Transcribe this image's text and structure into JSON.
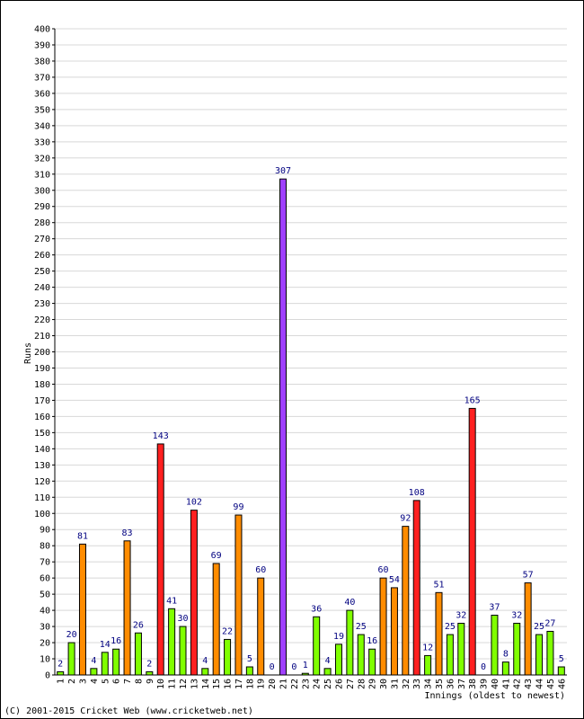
{
  "chart_data": {
    "type": "bar",
    "categories": [
      "1",
      "2",
      "3",
      "4",
      "5",
      "6",
      "7",
      "8",
      "9",
      "10",
      "11",
      "12",
      "13",
      "14",
      "15",
      "16",
      "17",
      "18",
      "19",
      "20",
      "21",
      "22",
      "23",
      "24",
      "25",
      "26",
      "27",
      "28",
      "29",
      "30",
      "31",
      "32",
      "33",
      "34",
      "35",
      "36",
      "37",
      "38",
      "39",
      "40",
      "41",
      "42",
      "43",
      "44",
      "45",
      "46"
    ],
    "values": [
      2,
      20,
      81,
      4,
      14,
      16,
      83,
      26,
      2,
      143,
      41,
      30,
      102,
      4,
      69,
      22,
      99,
      5,
      60,
      0,
      307,
      0,
      1,
      36,
      4,
      19,
      40,
      25,
      16,
      60,
      54,
      92,
      108,
      12,
      51,
      25,
      32,
      165,
      0,
      37,
      8,
      32,
      57,
      25,
      27,
      5
    ],
    "xlabel": "Innings (oldest to newest)",
    "ylabel": "Runs",
    "ylim": [
      0,
      400
    ],
    "ytick_step": 10,
    "grid": true,
    "legend": "none",
    "colors": {
      "under_50": "#80ff00",
      "50_to_99": "#ff8c00",
      "100_plus": "#ff2020",
      "300_plus": "#a040ff",
      "bar_edge": "#000000",
      "value_label": "#000080",
      "grid": "#d8d8d8"
    }
  },
  "footer": {
    "copyright": "(C) 2001-2015 Cricket Web (www.cricketweb.net)"
  }
}
